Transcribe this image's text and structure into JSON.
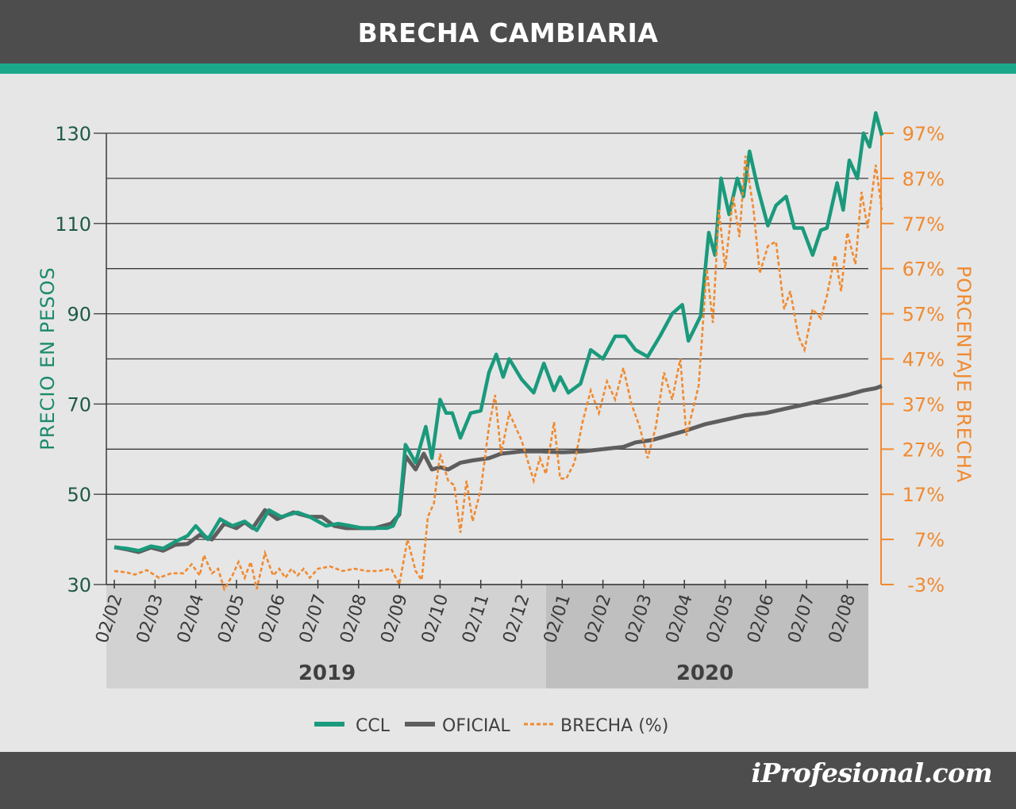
{
  "header": {
    "title": "BRECHA CAMBIARIA"
  },
  "brand": {
    "text": "iProfesional.com"
  },
  "colors": {
    "ccl": "#1a9a7c",
    "oficial": "#5e5e5e",
    "brecha": "#f08a30",
    "header_bg": "#4d4d4d",
    "accent": "#1aa88a"
  },
  "chart_data": {
    "type": "line",
    "title": "BRECHA CAMBIARIA",
    "ylabel": "PRECIO EN PESOS",
    "y2label": "PORCENTAJE BRECHA",
    "ylim": [
      30,
      130
    ],
    "y2lim": [
      -3,
      97
    ],
    "yticks": [
      "130",
      "110",
      "90",
      "70",
      "50",
      "30"
    ],
    "y2ticks": [
      "97%",
      "87%",
      "77%",
      "67%",
      "57%",
      "47%",
      "37%",
      "27%",
      "17%",
      "7%",
      "-3%"
    ],
    "x_ticks": [
      "02/02",
      "02/03",
      "02/04",
      "02/05",
      "02/06",
      "02/07",
      "02/08",
      "02/09",
      "02/10",
      "02/11",
      "02/12",
      "02/01",
      "02/02",
      "02/03",
      "02/04",
      "02/05",
      "02/06",
      "02/07",
      "02/08"
    ],
    "year_labels": [
      "2019",
      "2020"
    ],
    "grid": true,
    "legend": {
      "position": "bottom",
      "entries": [
        "CCL",
        "OFICIAL",
        "BRECHA (%)"
      ]
    },
    "series": [
      {
        "name": "CCL",
        "axis": "left",
        "points": [
          [
            0,
            38.3
          ],
          [
            0.3,
            38
          ],
          [
            0.6,
            37.5
          ],
          [
            0.9,
            38.5
          ],
          [
            1.2,
            38
          ],
          [
            1.5,
            39.5
          ],
          [
            1.8,
            40.8
          ],
          [
            2.0,
            43
          ],
          [
            2.3,
            40
          ],
          [
            2.6,
            44.5
          ],
          [
            2.9,
            43
          ],
          [
            3.2,
            44
          ],
          [
            3.5,
            42
          ],
          [
            3.8,
            46.5
          ],
          [
            4.1,
            45
          ],
          [
            4.5,
            46
          ],
          [
            4.8,
            45
          ],
          [
            5.2,
            43
          ],
          [
            5.5,
            43.5
          ],
          [
            5.8,
            43
          ],
          [
            6.1,
            42.5
          ],
          [
            6.4,
            42.5
          ],
          [
            6.7,
            42.5
          ],
          [
            6.85,
            43
          ],
          [
            7.0,
            46
          ],
          [
            7.15,
            61
          ],
          [
            7.4,
            57
          ],
          [
            7.65,
            65
          ],
          [
            7.8,
            58
          ],
          [
            8.0,
            71
          ],
          [
            8.15,
            68
          ],
          [
            8.3,
            68
          ],
          [
            8.5,
            62.5
          ],
          [
            8.75,
            68
          ],
          [
            9.0,
            68.5
          ],
          [
            9.2,
            77
          ],
          [
            9.38,
            81
          ],
          [
            9.55,
            76
          ],
          [
            9.7,
            80
          ],
          [
            10.0,
            75.5
          ],
          [
            10.3,
            72.5
          ],
          [
            10.55,
            79
          ],
          [
            10.8,
            73
          ],
          [
            10.95,
            76
          ],
          [
            11.15,
            72.5
          ],
          [
            11.45,
            74.5
          ],
          [
            11.7,
            82
          ],
          [
            12.0,
            80
          ],
          [
            12.3,
            85
          ],
          [
            12.55,
            85
          ],
          [
            12.8,
            82
          ],
          [
            13.1,
            80.5
          ],
          [
            13.4,
            85
          ],
          [
            13.7,
            90
          ],
          [
            13.95,
            92
          ],
          [
            14.1,
            84
          ],
          [
            14.4,
            89.5
          ],
          [
            14.6,
            108
          ],
          [
            14.75,
            103
          ],
          [
            14.9,
            120
          ],
          [
            15.1,
            112
          ],
          [
            15.3,
            120
          ],
          [
            15.45,
            116
          ],
          [
            15.6,
            126
          ],
          [
            15.8,
            118
          ],
          [
            16.05,
            109.5
          ],
          [
            16.25,
            114
          ],
          [
            16.5,
            116
          ],
          [
            16.7,
            109
          ],
          [
            16.9,
            109
          ],
          [
            17.15,
            103
          ],
          [
            17.35,
            108.5
          ],
          [
            17.5,
            109
          ],
          [
            17.75,
            119
          ],
          [
            17.9,
            113
          ],
          [
            18.05,
            124
          ],
          [
            18.25,
            120
          ],
          [
            18.4,
            130
          ],
          [
            18.55,
            127
          ],
          [
            18.7,
            134.5
          ],
          [
            18.85,
            129.5
          ]
        ]
      },
      {
        "name": "OFICIAL",
        "axis": "left",
        "points": [
          [
            0,
            38.3
          ],
          [
            0.3,
            37.8
          ],
          [
            0.6,
            37.2
          ],
          [
            0.9,
            38.2
          ],
          [
            1.2,
            37.5
          ],
          [
            1.5,
            38.8
          ],
          [
            1.8,
            39
          ],
          [
            2.1,
            41
          ],
          [
            2.4,
            40
          ],
          [
            2.7,
            43.5
          ],
          [
            3.0,
            42.5
          ],
          [
            3.2,
            43.8
          ],
          [
            3.4,
            42.5
          ],
          [
            3.7,
            46.5
          ],
          [
            4.0,
            44.5
          ],
          [
            4.4,
            46
          ],
          [
            4.8,
            45
          ],
          [
            5.1,
            45
          ],
          [
            5.4,
            43
          ],
          [
            5.7,
            42.5
          ],
          [
            6.0,
            42.5
          ],
          [
            6.4,
            42.5
          ],
          [
            6.8,
            43.5
          ],
          [
            7.0,
            45.5
          ],
          [
            7.15,
            58.5
          ],
          [
            7.4,
            55.5
          ],
          [
            7.6,
            59
          ],
          [
            7.8,
            55.5
          ],
          [
            8.0,
            56
          ],
          [
            8.2,
            55.5
          ],
          [
            8.5,
            57
          ],
          [
            8.8,
            57.5
          ],
          [
            9.2,
            58
          ],
          [
            9.5,
            59
          ],
          [
            10.0,
            59.5
          ],
          [
            10.5,
            59.5
          ],
          [
            11.0,
            59.3
          ],
          [
            11.5,
            59.5
          ],
          [
            12.0,
            60
          ],
          [
            12.5,
            60.5
          ],
          [
            12.8,
            61.5
          ],
          [
            13.2,
            62
          ],
          [
            13.6,
            63
          ],
          [
            14.0,
            64
          ],
          [
            14.5,
            65.5
          ],
          [
            15.0,
            66.5
          ],
          [
            15.5,
            67.5
          ],
          [
            16.0,
            68
          ],
          [
            16.5,
            69
          ],
          [
            17.0,
            70
          ],
          [
            17.5,
            71
          ],
          [
            18.0,
            72
          ],
          [
            18.4,
            73
          ],
          [
            18.7,
            73.5
          ],
          [
            18.85,
            74
          ]
        ]
      },
      {
        "name": "BRECHA (%)",
        "axis": "right",
        "points": [
          [
            0,
            0
          ],
          [
            0.3,
            -0.3
          ],
          [
            0.5,
            -0.8
          ],
          [
            0.8,
            0.2
          ],
          [
            1.1,
            -1.5
          ],
          [
            1.4,
            -0.5
          ],
          [
            1.7,
            -0.5
          ],
          [
            1.9,
            1.5
          ],
          [
            2.1,
            -1
          ],
          [
            2.2,
            3.5
          ],
          [
            2.4,
            -0.5
          ],
          [
            2.55,
            0.5
          ],
          [
            2.7,
            -4
          ],
          [
            2.9,
            -1
          ],
          [
            3.05,
            2
          ],
          [
            3.2,
            -1.5
          ],
          [
            3.35,
            2
          ],
          [
            3.5,
            -4
          ],
          [
            3.7,
            4
          ],
          [
            3.9,
            -1
          ],
          [
            4.05,
            0.5
          ],
          [
            4.2,
            -1.5
          ],
          [
            4.35,
            0.5
          ],
          [
            4.5,
            -1
          ],
          [
            4.65,
            0.5
          ],
          [
            4.8,
            -1.5
          ],
          [
            5.0,
            0.5
          ],
          [
            5.3,
            1
          ],
          [
            5.6,
            0
          ],
          [
            5.9,
            0.5
          ],
          [
            6.2,
            0
          ],
          [
            6.5,
            0
          ],
          [
            6.8,
            0.5
          ],
          [
            7.0,
            -3
          ],
          [
            7.2,
            7
          ],
          [
            7.4,
            0
          ],
          [
            7.55,
            -2
          ],
          [
            7.7,
            12
          ],
          [
            7.85,
            15
          ],
          [
            8.0,
            26
          ],
          [
            8.2,
            20
          ],
          [
            8.35,
            19
          ],
          [
            8.5,
            8.5
          ],
          [
            8.65,
            20
          ],
          [
            8.8,
            11
          ],
          [
            9.0,
            18
          ],
          [
            9.2,
            32
          ],
          [
            9.35,
            39
          ],
          [
            9.5,
            26
          ],
          [
            9.7,
            35
          ],
          [
            10.0,
            29
          ],
          [
            10.3,
            20
          ],
          [
            10.45,
            25
          ],
          [
            10.6,
            21.5
          ],
          [
            10.8,
            33
          ],
          [
            10.95,
            20.5
          ],
          [
            11.1,
            20.5
          ],
          [
            11.3,
            24
          ],
          [
            11.5,
            33
          ],
          [
            11.7,
            40
          ],
          [
            11.9,
            35
          ],
          [
            12.1,
            42
          ],
          [
            12.3,
            38
          ],
          [
            12.5,
            45
          ],
          [
            12.7,
            37
          ],
          [
            12.9,
            32
          ],
          [
            13.1,
            25
          ],
          [
            13.3,
            32
          ],
          [
            13.5,
            44
          ],
          [
            13.7,
            38
          ],
          [
            13.9,
            47
          ],
          [
            14.05,
            30
          ],
          [
            14.35,
            41
          ],
          [
            14.55,
            67
          ],
          [
            14.7,
            55
          ],
          [
            14.85,
            80
          ],
          [
            15.0,
            67
          ],
          [
            15.2,
            83
          ],
          [
            15.35,
            74
          ],
          [
            15.5,
            92
          ],
          [
            15.7,
            80
          ],
          [
            15.85,
            66
          ],
          [
            16.05,
            72
          ],
          [
            16.25,
            73
          ],
          [
            16.45,
            58
          ],
          [
            16.6,
            62
          ],
          [
            16.8,
            52
          ],
          [
            16.95,
            49
          ],
          [
            17.15,
            58
          ],
          [
            17.35,
            56
          ],
          [
            17.5,
            61
          ],
          [
            17.7,
            70
          ],
          [
            17.85,
            62
          ],
          [
            18.0,
            75
          ],
          [
            18.2,
            68
          ],
          [
            18.35,
            84
          ],
          [
            18.5,
            76
          ],
          [
            18.7,
            90
          ],
          [
            18.85,
            80
          ]
        ]
      }
    ]
  }
}
